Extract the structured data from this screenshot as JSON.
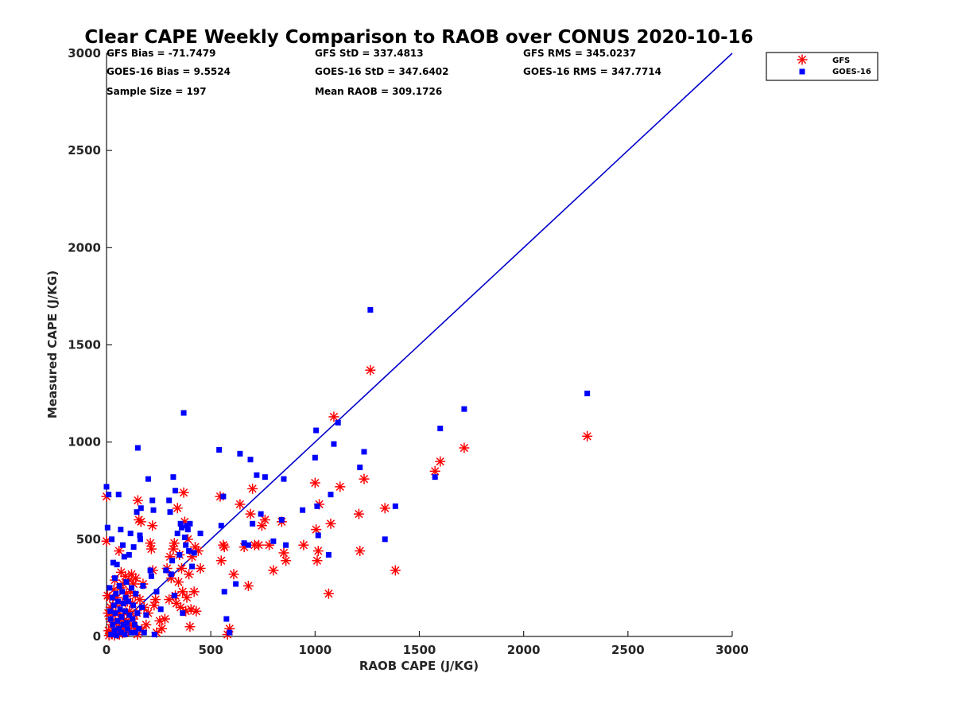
{
  "chart_data": {
    "type": "scatter",
    "title": "Clear CAPE Weekly Comparison to RAOB over CONUS 2020-10-16",
    "xlabel": "RAOB CAPE (J/KG)",
    "ylabel": "Measured CAPE (J/KG)",
    "xlim": [
      0,
      3000
    ],
    "ylim": [
      0,
      3000
    ],
    "xticks": [
      "0",
      "500",
      "1000",
      "1500",
      "2000",
      "2500",
      "3000"
    ],
    "yticks": [
      "0",
      "500",
      "1000",
      "1500",
      "2000",
      "2500",
      "3000"
    ],
    "grid": false,
    "legend_position": "top-right",
    "stats": {
      "gfs_bias": "GFS Bias = -71.7479",
      "gfs_std": "GFS StD = 337.4813",
      "gfs_rms": "GFS RMS = 345.0237",
      "goes_bias": "GOES-16 Bias = 9.5524",
      "goes_std": "GOES-16 StD = 347.6402",
      "goes_rms": "GOES-16 RMS = 347.7714",
      "sample_size": "Sample Size = 197",
      "mean_raob": "Mean RAOB = 309.1726"
    },
    "reference_line": {
      "x": [
        0,
        3000
      ],
      "y": [
        0,
        3000
      ],
      "color": "#0000cc"
    },
    "series": [
      {
        "name": "GFS",
        "marker": "asterisk",
        "color": "#ff0000",
        "points": [
          [
            0,
            720
          ],
          [
            0,
            490
          ],
          [
            5,
            210
          ],
          [
            8,
            120
          ],
          [
            10,
            30
          ],
          [
            12,
            5
          ],
          [
            15,
            200
          ],
          [
            18,
            90
          ],
          [
            20,
            150
          ],
          [
            25,
            60
          ],
          [
            28,
            20
          ],
          [
            30,
            110
          ],
          [
            35,
            240
          ],
          [
            38,
            5
          ],
          [
            40,
            290
          ],
          [
            45,
            160
          ],
          [
            48,
            70
          ],
          [
            50,
            200
          ],
          [
            55,
            30
          ],
          [
            58,
            120
          ],
          [
            60,
            440
          ],
          [
            62,
            10
          ],
          [
            65,
            250
          ],
          [
            68,
            90
          ],
          [
            70,
            330
          ],
          [
            75,
            170
          ],
          [
            78,
            40
          ],
          [
            80,
            270
          ],
          [
            85,
            120
          ],
          [
            88,
            20
          ],
          [
            90,
            310
          ],
          [
            95,
            220
          ],
          [
            98,
            80
          ],
          [
            100,
            180
          ],
          [
            105,
            30
          ],
          [
            108,
            290
          ],
          [
            110,
            130
          ],
          [
            115,
            230
          ],
          [
            118,
            60
          ],
          [
            120,
            320
          ],
          [
            125,
            170
          ],
          [
            128,
            90
          ],
          [
            130,
            270
          ],
          [
            135,
            40
          ],
          [
            138,
            210
          ],
          [
            140,
            300
          ],
          [
            145,
            120
          ],
          [
            148,
            10
          ],
          [
            150,
            700
          ],
          [
            155,
            600
          ],
          [
            160,
            190
          ],
          [
            165,
            590
          ],
          [
            170,
            30
          ],
          [
            175,
            270
          ],
          [
            180,
            150
          ],
          [
            190,
            60
          ],
          [
            200,
            120
          ],
          [
            210,
            480
          ],
          [
            215,
            450
          ],
          [
            220,
            570
          ],
          [
            222,
            340
          ],
          [
            228,
            160
          ],
          [
            235,
            190
          ],
          [
            240,
            20
          ],
          [
            255,
            80
          ],
          [
            265,
            40
          ],
          [
            280,
            90
          ],
          [
            290,
            350
          ],
          [
            300,
            190
          ],
          [
            305,
            410
          ],
          [
            310,
            300
          ],
          [
            320,
            450
          ],
          [
            325,
            480
          ],
          [
            330,
            210
          ],
          [
            335,
            170
          ],
          [
            340,
            660
          ],
          [
            345,
            280
          ],
          [
            350,
            420
          ],
          [
            355,
            150
          ],
          [
            360,
            350
          ],
          [
            365,
            230
          ],
          [
            370,
            740
          ],
          [
            375,
            590
          ],
          [
            380,
            130
          ],
          [
            385,
            200
          ],
          [
            390,
            500
          ],
          [
            395,
            320
          ],
          [
            400,
            50
          ],
          [
            405,
            140
          ],
          [
            410,
            410
          ],
          [
            420,
            230
          ],
          [
            425,
            460
          ],
          [
            430,
            130
          ],
          [
            440,
            440
          ],
          [
            450,
            350
          ],
          [
            545,
            720
          ],
          [
            550,
            390
          ],
          [
            560,
            470
          ],
          [
            565,
            460
          ],
          [
            580,
            10
          ],
          [
            590,
            40
          ],
          [
            610,
            320
          ],
          [
            640,
            680
          ],
          [
            660,
            460
          ],
          [
            680,
            260
          ],
          [
            690,
            630
          ],
          [
            700,
            760
          ],
          [
            710,
            470
          ],
          [
            730,
            470
          ],
          [
            745,
            570
          ],
          [
            760,
            600
          ],
          [
            780,
            470
          ],
          [
            800,
            340
          ],
          [
            840,
            590
          ],
          [
            850,
            430
          ],
          [
            860,
            390
          ],
          [
            945,
            470
          ],
          [
            1000,
            790
          ],
          [
            1005,
            550
          ],
          [
            1010,
            390
          ],
          [
            1015,
            440
          ],
          [
            1020,
            680
          ],
          [
            1065,
            220
          ],
          [
            1075,
            580
          ],
          [
            1090,
            1130
          ],
          [
            1120,
            770
          ],
          [
            1210,
            630
          ],
          [
            1215,
            440
          ],
          [
            1235,
            810
          ],
          [
            1265,
            1370
          ],
          [
            1335,
            660
          ],
          [
            1385,
            340
          ],
          [
            1575,
            850
          ],
          [
            1600,
            900
          ],
          [
            1715,
            970
          ],
          [
            2305,
            1030
          ]
        ]
      },
      {
        "name": "GOES-16",
        "marker": "square",
        "color": "#0000ff",
        "points": [
          [
            0,
            770
          ],
          [
            5,
            560
          ],
          [
            10,
            730
          ],
          [
            15,
            250
          ],
          [
            18,
            130
          ],
          [
            20,
            90
          ],
          [
            22,
            10
          ],
          [
            25,
            500
          ],
          [
            28,
            200
          ],
          [
            30,
            60
          ],
          [
            32,
            380
          ],
          [
            35,
            160
          ],
          [
            38,
            30
          ],
          [
            40,
            300
          ],
          [
            42,
            120
          ],
          [
            45,
            220
          ],
          [
            48,
            5
          ],
          [
            50,
            370
          ],
          [
            52,
            80
          ],
          [
            55,
            180
          ],
          [
            58,
            730
          ],
          [
            60,
            40
          ],
          [
            62,
            260
          ],
          [
            65,
            140
          ],
          [
            68,
            550
          ],
          [
            70,
            20
          ],
          [
            72,
            100
          ],
          [
            75,
            230
          ],
          [
            78,
            470
          ],
          [
            80,
            60
          ],
          [
            82,
            170
          ],
          [
            85,
            410
          ],
          [
            88,
            10
          ],
          [
            90,
            130
          ],
          [
            92,
            200
          ],
          [
            95,
            280
          ],
          [
            98,
            70
          ],
          [
            100,
            40
          ],
          [
            105,
            180
          ],
          [
            108,
            420
          ],
          [
            110,
            110
          ],
          [
            115,
            530
          ],
          [
            118,
            20
          ],
          [
            120,
            250
          ],
          [
            125,
            90
          ],
          [
            128,
            160
          ],
          [
            130,
            460
          ],
          [
            135,
            60
          ],
          [
            138,
            20
          ],
          [
            140,
            220
          ],
          [
            145,
            640
          ],
          [
            148,
            120
          ],
          [
            150,
            970
          ],
          [
            155,
            40
          ],
          [
            160,
            520
          ],
          [
            162,
            500
          ],
          [
            165,
            660
          ],
          [
            170,
            150
          ],
          [
            175,
            260
          ],
          [
            180,
            20
          ],
          [
            190,
            110
          ],
          [
            200,
            810
          ],
          [
            210,
            340
          ],
          [
            215,
            310
          ],
          [
            220,
            700
          ],
          [
            225,
            650
          ],
          [
            230,
            10
          ],
          [
            240,
            230
          ],
          [
            260,
            140
          ],
          [
            285,
            340
          ],
          [
            300,
            700
          ],
          [
            305,
            640
          ],
          [
            310,
            320
          ],
          [
            315,
            390
          ],
          [
            320,
            820
          ],
          [
            325,
            210
          ],
          [
            330,
            750
          ],
          [
            340,
            530
          ],
          [
            350,
            420
          ],
          [
            355,
            580
          ],
          [
            360,
            560
          ],
          [
            365,
            120
          ],
          [
            370,
            1150
          ],
          [
            375,
            510
          ],
          [
            380,
            470
          ],
          [
            385,
            570
          ],
          [
            390,
            550
          ],
          [
            395,
            440
          ],
          [
            400,
            580
          ],
          [
            410,
            360
          ],
          [
            420,
            430
          ],
          [
            450,
            530
          ],
          [
            540,
            960
          ],
          [
            550,
            570
          ],
          [
            560,
            720
          ],
          [
            565,
            230
          ],
          [
            575,
            90
          ],
          [
            590,
            20
          ],
          [
            620,
            270
          ],
          [
            640,
            940
          ],
          [
            660,
            480
          ],
          [
            680,
            470
          ],
          [
            690,
            910
          ],
          [
            700,
            580
          ],
          [
            720,
            830
          ],
          [
            740,
            630
          ],
          [
            760,
            820
          ],
          [
            800,
            490
          ],
          [
            840,
            600
          ],
          [
            850,
            810
          ],
          [
            860,
            470
          ],
          [
            940,
            650
          ],
          [
            1000,
            920
          ],
          [
            1005,
            1060
          ],
          [
            1010,
            670
          ],
          [
            1015,
            520
          ],
          [
            1065,
            420
          ],
          [
            1075,
            730
          ],
          [
            1090,
            990
          ],
          [
            1110,
            1100
          ],
          [
            1215,
            870
          ],
          [
            1235,
            950
          ],
          [
            1265,
            1680
          ],
          [
            1335,
            500
          ],
          [
            1385,
            670
          ],
          [
            1575,
            820
          ],
          [
            1600,
            1070
          ],
          [
            1715,
            1170
          ],
          [
            2305,
            1250
          ]
        ]
      }
    ]
  }
}
